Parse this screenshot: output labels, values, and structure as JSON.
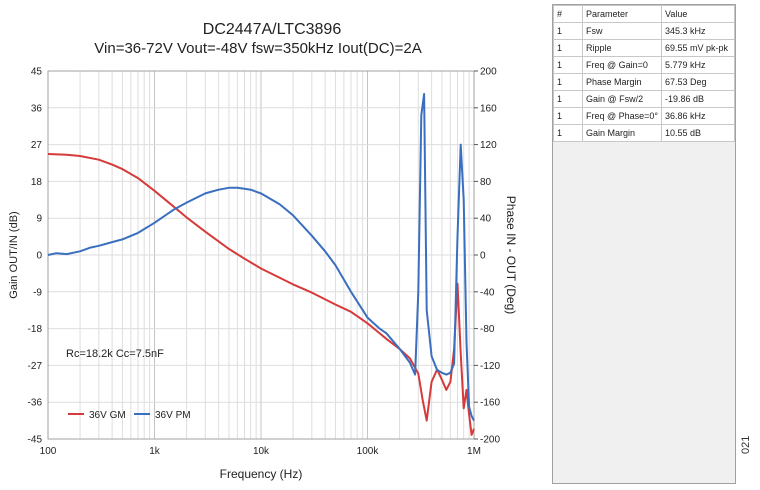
{
  "chart_data": {
    "type": "line",
    "title": "DC2447A/LTC3896",
    "subtitle": "Vin=36-72V Vout=-48V fsw=350kHz Iout(DC)=2A",
    "xlabel": "Frequency (Hz)",
    "ylabel_left": "Gain OUT/IN (dB)",
    "ylabel_right": "Phase IN - OUT (Deg)",
    "x_scale": "log",
    "xlim": [
      100,
      1000000
    ],
    "ylim_left": [
      -45,
      45
    ],
    "ylim_right": [
      -200,
      200
    ],
    "x_ticks": [
      {
        "value": 100,
        "label": "100"
      },
      {
        "value": 1000,
        "label": "1k"
      },
      {
        "value": 10000,
        "label": "10k"
      },
      {
        "value": 100000,
        "label": "100k"
      },
      {
        "value": 1000000,
        "label": "1M"
      }
    ],
    "y_left_ticks": [
      "45",
      "36",
      "27",
      "18",
      "9",
      "0",
      "-9",
      "-18",
      "-27",
      "-36",
      "-45"
    ],
    "y_left_values": [
      45,
      36,
      27,
      18,
      9,
      0,
      -9,
      -18,
      -27,
      -36,
      -45
    ],
    "y_right_ticks": [
      "200",
      "160",
      "120",
      "80",
      "40",
      "0",
      "-40",
      "-80",
      "-120",
      "-160",
      "-200"
    ],
    "y_right_values": [
      200,
      160,
      120,
      80,
      40,
      0,
      -40,
      -80,
      -120,
      -160,
      -200
    ],
    "grid": true,
    "legend_position": "bottom-left",
    "annotation": "Rc=18.2k Cc=7.5nF",
    "series": [
      {
        "name": "36V GM",
        "axis": "left",
        "color": "#d63a3a",
        "x": [
          100,
          150,
          200,
          300,
          400,
          500,
          700,
          1000,
          1500,
          2000,
          3000,
          5000,
          7000,
          10000,
          20000,
          30000,
          50000,
          70000,
          100000,
          150000,
          200000,
          250000,
          300000,
          330000,
          360000,
          400000,
          450000,
          500000,
          550000,
          600000,
          650000,
          700000,
          750000,
          800000,
          850000,
          900000,
          950000,
          1000000
        ],
        "y": [
          24.7,
          24.5,
          24.2,
          23.3,
          22.1,
          21.0,
          18.8,
          15.7,
          11.9,
          9.2,
          5.7,
          1.5,
          -0.9,
          -3.3,
          -7.2,
          -9.2,
          -12.1,
          -13.9,
          -16.7,
          -20.5,
          -23.0,
          -25.3,
          -29.0,
          -35.5,
          -40.5,
          -31.0,
          -28.0,
          -30.5,
          -33.0,
          -31.0,
          -23.0,
          -7.0,
          -24.0,
          -37.5,
          -33.0,
          -39.0,
          -44.0,
          -42.5
        ]
      },
      {
        "name": "36V PM",
        "axis": "right",
        "color": "#3a6fbf",
        "x": [
          100,
          120,
          150,
          200,
          250,
          300,
          400,
          500,
          700,
          1000,
          1500,
          2000,
          3000,
          4000,
          5000,
          6000,
          7000,
          8000,
          10000,
          15000,
          20000,
          30000,
          40000,
          50000,
          70000,
          100000,
          130000,
          150000,
          200000,
          250000,
          280000,
          300000,
          320000,
          340000,
          360000,
          400000,
          450000,
          500000,
          550000,
          600000,
          650000,
          700000,
          750000,
          800000,
          850000,
          900000,
          950000,
          1000000
        ],
        "y": [
          0,
          2,
          1,
          4,
          8,
          10,
          14,
          17,
          24,
          35,
          49,
          57,
          67,
          71,
          73,
          73,
          72,
          71,
          67,
          55,
          43,
          21,
          4,
          -11,
          -40,
          -68,
          -80,
          -85,
          -102,
          -117,
          -130,
          -40,
          152,
          175,
          -60,
          -110,
          -125,
          -128,
          -130,
          -128,
          -118,
          20,
          120,
          60,
          -95,
          -165,
          -175,
          -180
        ]
      }
    ]
  },
  "table": {
    "headers": [
      "#",
      "Parameter",
      "Value"
    ],
    "rows": [
      [
        "1",
        "Fsw",
        "345.3 kHz"
      ],
      [
        "1",
        "Ripple",
        "69.55 mV pk-pk"
      ],
      [
        "1",
        "Freq @ Gain=0",
        "5.779 kHz"
      ],
      [
        "1",
        "Phase Margin",
        "67.53 Deg"
      ],
      [
        "1",
        "Gain @ Fsw/2",
        "-19.86 dB"
      ],
      [
        "1",
        "Freq @ Phase=0°",
        "36.86 kHz"
      ],
      [
        "1",
        "Gain Margin",
        "10.55 dB"
      ]
    ]
  },
  "figure_number": "021"
}
